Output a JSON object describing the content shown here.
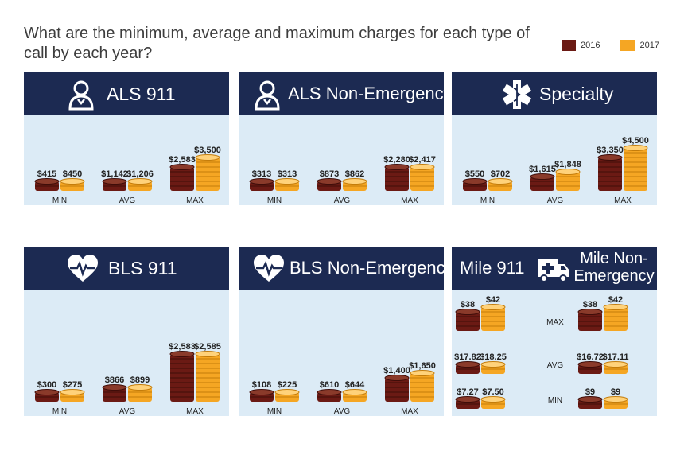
{
  "title": "What are the minimum, average and maximum charges for each type of call by each year?",
  "legend": [
    {
      "label": "2016",
      "color": "#6b1a14"
    },
    {
      "label": "2017",
      "color": "#f5a623"
    }
  ],
  "panels": [
    {
      "title": "ALS 911",
      "icon": "paramedic-icon"
    },
    {
      "title": "ALS Non-Emergency",
      "icon": "paramedic-icon"
    },
    {
      "title": "Specialty",
      "icon": "star-of-life-icon"
    },
    {
      "title": "BLS 911",
      "icon": "heart-pulse-icon"
    },
    {
      "title": "BLS Non-Emergency",
      "icon": "heart-pulse-icon"
    },
    {
      "title_left": "Mile 911",
      "title_right": "Mile Non-Emergency",
      "icon": "ambulance-icon"
    }
  ],
  "chart_data": [
    {
      "type": "bar",
      "title": "ALS 911",
      "categories": [
        "MIN",
        "AVG",
        "MAX"
      ],
      "series": [
        {
          "name": "2016",
          "values": [
            415,
            1142,
            2583
          ],
          "labels": [
            "$415",
            "$1,142",
            "$2,583"
          ]
        },
        {
          "name": "2017",
          "values": [
            450,
            1206,
            3500
          ],
          "labels": [
            "$450",
            "$1,206",
            "$3,500"
          ]
        }
      ]
    },
    {
      "type": "bar",
      "title": "ALS Non-Emergency",
      "categories": [
        "MIN",
        "AVG",
        "MAX"
      ],
      "series": [
        {
          "name": "2016",
          "values": [
            313,
            873,
            2280
          ],
          "labels": [
            "$313",
            "$873",
            "$2,280"
          ]
        },
        {
          "name": "2017",
          "values": [
            313,
            862,
            2417
          ],
          "labels": [
            "$313",
            "$862",
            "$2,417"
          ]
        }
      ]
    },
    {
      "type": "bar",
      "title": "Specialty",
      "categories": [
        "MIN",
        "AVG",
        "MAX"
      ],
      "series": [
        {
          "name": "2016",
          "values": [
            550,
            1615,
            3350
          ],
          "labels": [
            "$550",
            "$1,615",
            "$3,350"
          ]
        },
        {
          "name": "2017",
          "values": [
            702,
            1848,
            4500
          ],
          "labels": [
            "$702",
            "$1,848",
            "$4,500"
          ]
        }
      ]
    },
    {
      "type": "bar",
      "title": "BLS 911",
      "categories": [
        "MIN",
        "AVG",
        "MAX"
      ],
      "series": [
        {
          "name": "2016",
          "values": [
            300,
            866,
            2583
          ],
          "labels": [
            "$300",
            "$866",
            "$2,583"
          ]
        },
        {
          "name": "2017",
          "values": [
            275,
            899,
            2585
          ],
          "labels": [
            "$275",
            "$899",
            "$2,585"
          ]
        }
      ]
    },
    {
      "type": "bar",
      "title": "BLS Non-Emergency",
      "categories": [
        "MIN",
        "AVG",
        "MAX"
      ],
      "series": [
        {
          "name": "2016",
          "values": [
            108,
            610,
            1400
          ],
          "labels": [
            "$108",
            "$610",
            "$1,400"
          ]
        },
        {
          "name": "2017",
          "values": [
            225,
            644,
            1650
          ],
          "labels": [
            "$225",
            "$644",
            "$1,650"
          ]
        }
      ]
    },
    {
      "type": "bar",
      "title": "Mile 911 / Mile Non-Emergency",
      "categories": [
        "MAX",
        "AVG",
        "MIN"
      ],
      "groups": [
        {
          "name": "Mile 911",
          "series": [
            {
              "name": "2016",
              "values": [
                38,
                17.82,
                7.27
              ],
              "labels": [
                "$38",
                "$17.82",
                "$7.27"
              ]
            },
            {
              "name": "2017",
              "values": [
                42,
                18.25,
                7.5
              ],
              "labels": [
                "$42",
                "$18.25",
                "$7.50"
              ]
            }
          ]
        },
        {
          "name": "Mile Non-Emergency",
          "series": [
            {
              "name": "2016",
              "values": [
                38,
                16.72,
                9
              ],
              "labels": [
                "$38",
                "$16.72",
                "$9"
              ]
            },
            {
              "name": "2017",
              "values": [
                42,
                17.11,
                9
              ],
              "labels": [
                "$42",
                "$17.11",
                "$9"
              ]
            }
          ]
        }
      ]
    }
  ]
}
